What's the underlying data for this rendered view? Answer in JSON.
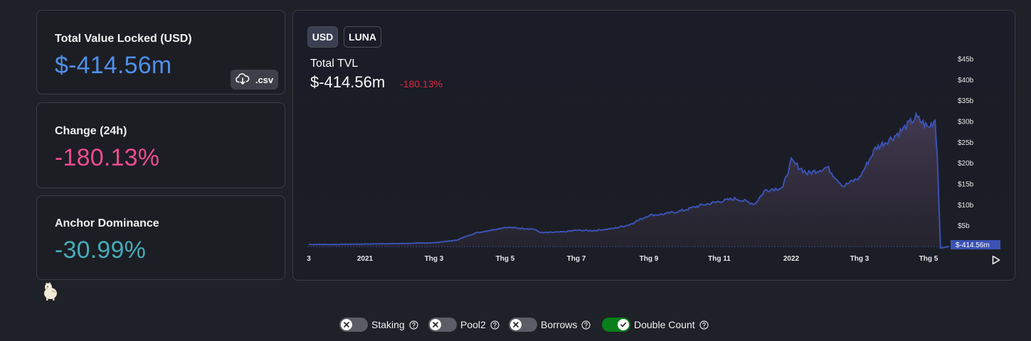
{
  "stats": {
    "tvl": {
      "label": "Total Value Locked (USD)",
      "value": "$-414.56m",
      "color": "#4f8fea"
    },
    "change": {
      "label": "Change (24h)",
      "value": "-180.13%",
      "color": "#ed4c8b"
    },
    "dominance": {
      "label": "Anchor Dominance",
      "value": "-30.99%",
      "color": "#46acb7"
    },
    "csv_label": ".csv"
  },
  "chart": {
    "denominations": [
      "USD",
      "LUNA"
    ],
    "selected_denomination": "USD",
    "title": "Total TVL",
    "value": "$-414.56m",
    "change": "-180.13%",
    "line_color": "#3b52b4",
    "change_color": "#d9293f"
  },
  "chart_data": {
    "type": "area",
    "title": "Total TVL",
    "x_ticks": [
      "3",
      "2021",
      "Thg 3",
      "Thg 5",
      "Thg 7",
      "Thg 9",
      "Thg 11",
      "2022",
      "Thg 3",
      "Thg 5"
    ],
    "y_ticks": [
      "$5b",
      "$10b",
      "$15b",
      "$20b",
      "$25b",
      "$30b",
      "$35b",
      "$40b",
      "$45b"
    ],
    "ylim": [
      0,
      45
    ],
    "y_unit": "billion USD",
    "current_value_label": "$-414.56m",
    "x": [
      "2020-11",
      "2020-12",
      "2021-01",
      "2021-02",
      "2021-03",
      "2021-03-20",
      "2021-04-05",
      "2021-04-20",
      "2021-05",
      "2021-05-25",
      "2021-06",
      "2021-06-20",
      "2021-07",
      "2021-07-15",
      "2021-08",
      "2021-08-15",
      "2021-09",
      "2021-09-15",
      "2021-10",
      "2021-10-15",
      "2021-11",
      "2021-11-15",
      "2021-12",
      "2021-12-10",
      "2021-12-25",
      "2022-01",
      "2022-01-15",
      "2022-02",
      "2022-02-15",
      "2022-03",
      "2022-03-15",
      "2022-04",
      "2022-04-10",
      "2022-04-20",
      "2022-05-01",
      "2022-05-07",
      "2022-05-09",
      "2022-05-12"
    ],
    "values": [
      0.5,
      0.5,
      0.6,
      0.7,
      0.9,
      1.5,
      3.2,
      4.0,
      4.6,
      4.2,
      3.3,
      3.5,
      3.9,
      3.8,
      4.3,
      5.2,
      7.5,
      7.8,
      8.7,
      9.8,
      10.8,
      11.5,
      10.2,
      13.5,
      14.2,
      20.5,
      17.5,
      19.0,
      14.5,
      16.5,
      23.5,
      26.5,
      28.5,
      31.0,
      28.5,
      30.5,
      22.0,
      -0.4
    ]
  },
  "filters": [
    {
      "label": "Staking",
      "enabled": false
    },
    {
      "label": "Pool2",
      "enabled": false
    },
    {
      "label": "Borrows",
      "enabled": false
    },
    {
      "label": "Double Count",
      "enabled": true
    }
  ]
}
